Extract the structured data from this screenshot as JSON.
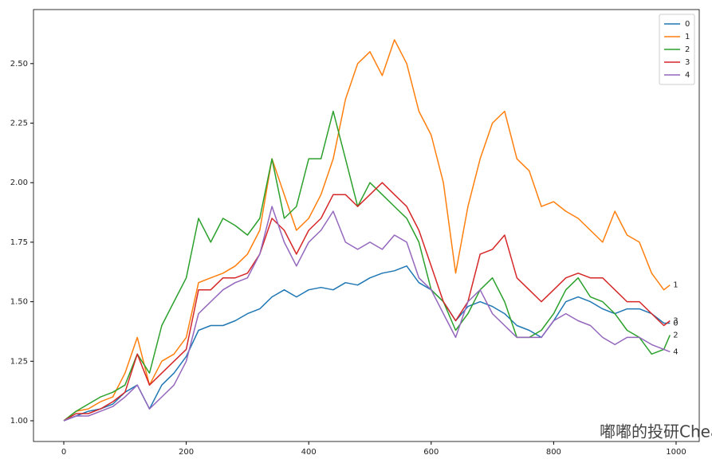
{
  "chart_data": {
    "type": "line",
    "x": [
      0,
      20,
      40,
      60,
      80,
      100,
      120,
      140,
      160,
      180,
      200,
      220,
      240,
      260,
      280,
      300,
      320,
      340,
      360,
      380,
      400,
      420,
      440,
      460,
      480,
      500,
      520,
      540,
      560,
      580,
      600,
      620,
      640,
      660,
      680,
      700,
      720,
      740,
      760,
      780,
      800,
      820,
      840,
      860,
      880,
      900,
      920,
      940,
      960,
      980,
      990
    ],
    "series": [
      {
        "name": "0",
        "color": "#1f77b4",
        "values": [
          1.0,
          1.02,
          1.04,
          1.05,
          1.07,
          1.12,
          1.15,
          1.05,
          1.15,
          1.2,
          1.27,
          1.38,
          1.4,
          1.4,
          1.42,
          1.45,
          1.47,
          1.52,
          1.55,
          1.52,
          1.55,
          1.56,
          1.55,
          1.58,
          1.57,
          1.6,
          1.62,
          1.63,
          1.65,
          1.58,
          1.55,
          1.5,
          1.42,
          1.48,
          1.5,
          1.48,
          1.45,
          1.4,
          1.38,
          1.35,
          1.42,
          1.5,
          1.52,
          1.5,
          1.47,
          1.45,
          1.47,
          1.47,
          1.45,
          1.41,
          1.41
        ]
      },
      {
        "name": "1",
        "color": "#ff7f0e",
        "values": [
          1.0,
          1.04,
          1.05,
          1.08,
          1.1,
          1.2,
          1.35,
          1.15,
          1.25,
          1.28,
          1.35,
          1.58,
          1.6,
          1.62,
          1.65,
          1.7,
          1.8,
          2.1,
          1.95,
          1.8,
          1.85,
          1.95,
          2.1,
          2.35,
          2.5,
          2.55,
          2.45,
          2.6,
          2.5,
          2.3,
          2.2,
          2.0,
          1.62,
          1.9,
          2.1,
          2.25,
          2.3,
          2.1,
          2.05,
          1.9,
          1.92,
          1.88,
          1.85,
          1.8,
          1.75,
          1.88,
          1.78,
          1.75,
          1.62,
          1.55,
          1.57
        ]
      },
      {
        "name": "2",
        "color": "#2ca02c",
        "values": [
          1.0,
          1.04,
          1.07,
          1.1,
          1.12,
          1.15,
          1.28,
          1.2,
          1.4,
          1.5,
          1.6,
          1.85,
          1.75,
          1.85,
          1.82,
          1.78,
          1.85,
          2.1,
          1.85,
          1.9,
          2.1,
          2.1,
          2.3,
          2.1,
          1.9,
          2.0,
          1.95,
          1.9,
          1.85,
          1.75,
          1.55,
          1.5,
          1.38,
          1.45,
          1.55,
          1.6,
          1.5,
          1.35,
          1.35,
          1.38,
          1.45,
          1.55,
          1.6,
          1.52,
          1.5,
          1.45,
          1.38,
          1.35,
          1.28,
          1.3,
          1.36
        ]
      },
      {
        "name": "3",
        "color": "#d62728",
        "values": [
          1.0,
          1.03,
          1.03,
          1.05,
          1.08,
          1.12,
          1.28,
          1.15,
          1.2,
          1.25,
          1.3,
          1.55,
          1.55,
          1.6,
          1.6,
          1.62,
          1.7,
          1.85,
          1.8,
          1.7,
          1.8,
          1.85,
          1.95,
          1.95,
          1.9,
          1.95,
          2.0,
          1.95,
          1.9,
          1.8,
          1.65,
          1.5,
          1.42,
          1.5,
          1.7,
          1.72,
          1.78,
          1.6,
          1.55,
          1.5,
          1.55,
          1.6,
          1.62,
          1.6,
          1.6,
          1.55,
          1.5,
          1.5,
          1.45,
          1.4,
          1.42
        ]
      },
      {
        "name": "4",
        "color": "#9467bd",
        "values": [
          1.0,
          1.02,
          1.02,
          1.04,
          1.06,
          1.1,
          1.15,
          1.05,
          1.1,
          1.15,
          1.25,
          1.45,
          1.5,
          1.55,
          1.58,
          1.6,
          1.7,
          1.9,
          1.75,
          1.65,
          1.75,
          1.8,
          1.88,
          1.75,
          1.72,
          1.75,
          1.72,
          1.78,
          1.75,
          1.6,
          1.55,
          1.45,
          1.35,
          1.5,
          1.55,
          1.45,
          1.4,
          1.35,
          1.35,
          1.35,
          1.42,
          1.45,
          1.42,
          1.4,
          1.35,
          1.32,
          1.35,
          1.35,
          1.32,
          1.3,
          1.29
        ]
      }
    ],
    "xlim": [
      -49.5,
      1037.8
    ],
    "ylim": [
      0.913,
      2.727
    ],
    "xticks": [
      0,
      200,
      400,
      600,
      800,
      1000
    ],
    "yticks": [
      {
        "value": 1.0,
        "label": "1.00"
      },
      {
        "value": 1.25,
        "label": "1.25"
      },
      {
        "value": 1.5,
        "label": "1.50"
      },
      {
        "value": 1.75,
        "label": "1.75"
      },
      {
        "value": 2.0,
        "label": "2.00"
      },
      {
        "value": 2.25,
        "label": "2.25"
      },
      {
        "value": 2.5,
        "label": "2.50"
      }
    ],
    "legend": "upper right",
    "end_labels": true,
    "watermark": "嘟嘟的投研CheatSheet"
  }
}
